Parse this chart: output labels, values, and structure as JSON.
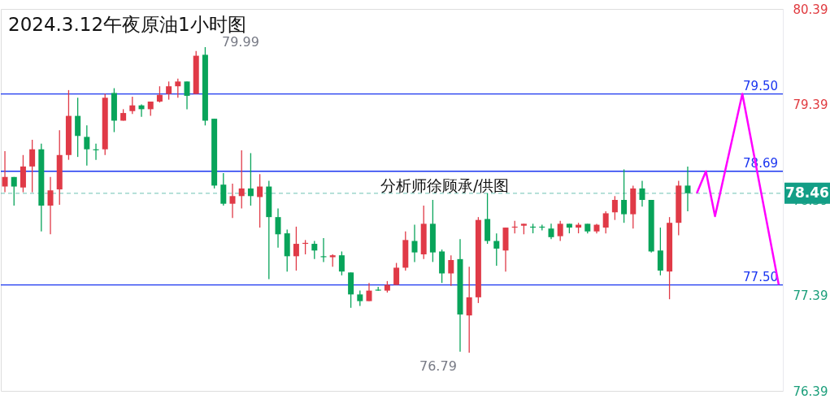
{
  "chart_data": {
    "type": "candlestick",
    "title": "2024.3.12午夜原油1小时图",
    "categories": [
      null,
      null,
      null,
      null,
      null,
      null,
      null,
      null,
      null,
      null,
      null,
      null,
      null,
      null,
      null,
      null,
      null,
      null,
      null,
      null,
      null,
      null,
      null,
      null,
      null,
      null,
      null,
      null,
      null,
      null,
      null,
      null,
      null,
      null,
      null,
      null,
      null,
      null,
      null,
      null,
      null,
      null,
      null,
      null,
      null,
      null,
      null,
      null,
      null,
      null,
      null,
      null,
      null,
      null,
      null,
      null,
      null,
      null,
      null,
      null,
      null,
      null,
      null,
      null,
      null,
      null,
      null,
      null,
      null,
      null,
      null,
      null,
      null,
      null,
      null,
      null,
      null,
      null,
      null,
      null,
      null,
      null,
      null,
      null,
      null,
      null
    ],
    "ohlc": [
      [
        78.53,
        78.9,
        78.47,
        78.63
      ],
      [
        78.63,
        78.63,
        78.33,
        78.53
      ],
      [
        78.52,
        78.86,
        78.47,
        78.74
      ],
      [
        78.74,
        79.02,
        78.47,
        78.92
      ],
      [
        78.92,
        78.98,
        78.06,
        78.33
      ],
      [
        78.33,
        78.63,
        78.03,
        78.49
      ],
      [
        78.5,
        79.12,
        78.34,
        78.86
      ],
      [
        78.86,
        79.54,
        78.81,
        79.27
      ],
      [
        79.27,
        79.46,
        78.84,
        79.06
      ],
      [
        79.05,
        79.17,
        78.75,
        78.92
      ],
      [
        78.92,
        78.98,
        78.81,
        78.91
      ],
      [
        78.92,
        79.5,
        78.86,
        79.46
      ],
      [
        79.51,
        79.56,
        79.1,
        79.22
      ],
      [
        79.22,
        79.34,
        79.22,
        79.3
      ],
      [
        79.32,
        79.47,
        79.29,
        79.38
      ],
      [
        79.38,
        79.39,
        79.26,
        79.34
      ],
      [
        79.34,
        79.42,
        79.27,
        79.42
      ],
      [
        79.42,
        79.58,
        79.41,
        79.49
      ],
      [
        79.5,
        79.63,
        79.44,
        79.58
      ],
      [
        79.58,
        79.66,
        79.46,
        79.63
      ],
      [
        79.63,
        79.63,
        79.34,
        79.48
      ],
      [
        79.5,
        79.95,
        79.5,
        79.9
      ],
      [
        79.91,
        79.99,
        79.17,
        79.22
      ],
      [
        79.24,
        79.24,
        78.51,
        78.54
      ],
      [
        78.55,
        78.67,
        78.33,
        78.35
      ],
      [
        78.35,
        78.56,
        78.2,
        78.43
      ],
      [
        78.43,
        78.91,
        78.3,
        78.51
      ],
      [
        78.51,
        78.88,
        78.33,
        78.43
      ],
      [
        78.42,
        78.66,
        78.1,
        78.53
      ],
      [
        78.53,
        78.59,
        77.56,
        78.21
      ],
      [
        78.21,
        78.3,
        77.89,
        78.03
      ],
      [
        78.04,
        78.08,
        77.64,
        77.8
      ],
      [
        77.8,
        78.11,
        77.65,
        77.93
      ],
      [
        77.93,
        77.97,
        77.82,
        77.94
      ],
      [
        77.93,
        77.96,
        77.77,
        77.86
      ],
      [
        77.8,
        77.99,
        77.74,
        77.79
      ],
      [
        77.79,
        77.82,
        77.69,
        77.81
      ],
      [
        77.81,
        77.85,
        77.6,
        77.64
      ],
      [
        77.63,
        77.63,
        77.26,
        77.4
      ],
      [
        77.4,
        77.44,
        77.28,
        77.33
      ],
      [
        77.33,
        77.52,
        77.33,
        77.44
      ],
      [
        77.45,
        77.48,
        77.44,
        77.44
      ],
      [
        77.44,
        77.54,
        77.42,
        77.5
      ],
      [
        77.5,
        77.73,
        77.5,
        77.68
      ],
      [
        77.68,
        78.06,
        77.65,
        77.97
      ],
      [
        77.96,
        78.13,
        77.74,
        77.84
      ],
      [
        77.82,
        78.33,
        77.77,
        78.14
      ],
      [
        78.14,
        78.39,
        77.74,
        77.84
      ],
      [
        77.85,
        77.87,
        77.52,
        77.62
      ],
      [
        77.62,
        77.81,
        77.49,
        77.76
      ],
      [
        77.77,
        77.98,
        76.8,
        77.19
      ],
      [
        77.18,
        77.69,
        76.79,
        77.37
      ],
      [
        77.37,
        78.21,
        77.31,
        78.18
      ],
      [
        78.19,
        78.46,
        77.93,
        77.96
      ],
      [
        77.96,
        78.04,
        77.7,
        77.88
      ],
      [
        77.86,
        78.1,
        77.64,
        78.1
      ],
      [
        78.1,
        78.17,
        78.04,
        78.11
      ],
      [
        78.12,
        78.14,
        78.03,
        78.14
      ],
      [
        78.11,
        78.14,
        78.04,
        78.1
      ],
      [
        78.11,
        78.13,
        78.07,
        78.1
      ],
      [
        78.09,
        78.14,
        77.98,
        78.0
      ],
      [
        78.01,
        78.17,
        77.96,
        78.14
      ],
      [
        78.14,
        78.14,
        78.04,
        78.1
      ],
      [
        78.1,
        78.15,
        78.04,
        78.13
      ],
      [
        78.14,
        78.14,
        78.04,
        78.06
      ],
      [
        78.06,
        78.14,
        78.04,
        78.13
      ],
      [
        78.1,
        78.27,
        78.04,
        78.25
      ],
      [
        78.26,
        78.43,
        78.18,
        78.39
      ],
      [
        78.39,
        78.71,
        78.15,
        78.24
      ],
      [
        78.24,
        78.54,
        78.09,
        78.51
      ],
      [
        78.51,
        78.59,
        78.32,
        78.39
      ],
      [
        78.39,
        78.39,
        77.84,
        77.85
      ],
      [
        77.86,
        78.1,
        77.6,
        77.65
      ],
      [
        77.64,
        78.21,
        77.35,
        78.15
      ],
      [
        78.15,
        78.59,
        78.02,
        78.54
      ],
      [
        78.54,
        78.74,
        78.27,
        78.46
      ],
      null,
      null,
      null,
      null,
      null,
      null,
      null,
      null,
      null,
      null
    ],
    "colors": [
      "#e03a47",
      "#08a45a",
      "#e03a47",
      "#e03a47",
      "#08a45a",
      "#e03a47",
      "#e03a47",
      "#e03a47",
      "#08a45a",
      "#08a45a",
      "#08a45a",
      "#e03a47",
      "#08a45a",
      "#e03a47",
      "#e03a47",
      "#08a45a",
      "#e03a47",
      "#e03a47",
      "#e03a47",
      "#e03a47",
      "#08a45a",
      "#e03a47",
      "#08a45a",
      "#08a45a",
      "#08a45a",
      "#e03a47",
      "#e03a47",
      "#08a45a",
      "#e03a47",
      "#08a45a",
      "#08a45a",
      "#08a45a",
      "#e03a47",
      "#e03a47",
      "#08a45a",
      "#08a45a",
      "#e03a47",
      "#08a45a",
      "#08a45a",
      "#08a45a",
      "#e03a47",
      "#08a45a",
      "#e03a47",
      "#e03a47",
      "#e03a47",
      "#08a45a",
      "#e03a47",
      "#08a45a",
      "#08a45a",
      "#e03a47",
      "#08a45a",
      "#e03a47",
      "#e03a47",
      "#08a45a",
      "#08a45a",
      "#e03a47",
      "#e03a47",
      "#e03a47",
      "#08a45a",
      "#08a45a",
      "#08a45a",
      "#e03a47",
      "#08a45a",
      "#e03a47",
      "#08a45a",
      "#e03a47",
      "#e03a47",
      "#e03a47",
      "#08a45a",
      "#e03a47",
      "#08a45a",
      "#08a45a",
      "#08a45a",
      "#e03a47",
      "#e03a47",
      "#08a45a",
      null,
      null,
      null,
      null,
      null,
      null,
      null,
      null,
      null,
      null
    ],
    "series": [
      {
        "type": "line",
        "color": "#ff00ff",
        "values": [
          null,
          null,
          null,
          null,
          null,
          null,
          null,
          null,
          null,
          null,
          null,
          null,
          null,
          null,
          null,
          null,
          null,
          null,
          null,
          null,
          null,
          null,
          null,
          null,
          null,
          null,
          null,
          null,
          null,
          null,
          null,
          null,
          null,
          null,
          null,
          null,
          null,
          null,
          null,
          null,
          null,
          null,
          null,
          null,
          null,
          null,
          null,
          null,
          null,
          null,
          null,
          null,
          null,
          null,
          null,
          null,
          null,
          null,
          null,
          null,
          null,
          null,
          null,
          null,
          null,
          null,
          null,
          null,
          null,
          null,
          null,
          null,
          null,
          null,
          null,
          null,
          78.46,
          78.69,
          78.22,
          null,
          null,
          79.5,
          null,
          null,
          null,
          77.5
        ]
      }
    ],
    "ref_lines": [
      {
        "axis": "y",
        "value": 79.5,
        "label": "79.50",
        "color": "#1a35f0"
      },
      {
        "axis": "y",
        "value": 78.69,
        "label": "78.69",
        "color": "#1a35f0"
      },
      {
        "axis": "y",
        "value": 77.5,
        "label": "77.50",
        "color": "#1a35f0"
      },
      {
        "axis": "y",
        "value": 78.46,
        "label": "78.46",
        "color": "#139e86",
        "line_style": "dashed"
      }
    ],
    "annotations": [
      "分析师徐顾承/供图",
      "79.99",
      "76.79"
    ],
    "ylim": [
      76.39,
      80.39
    ],
    "yticks": [
      76.39,
      77.39,
      78.39,
      79.39,
      80.39
    ],
    "tick_labels": "y",
    "grid": false
  }
}
